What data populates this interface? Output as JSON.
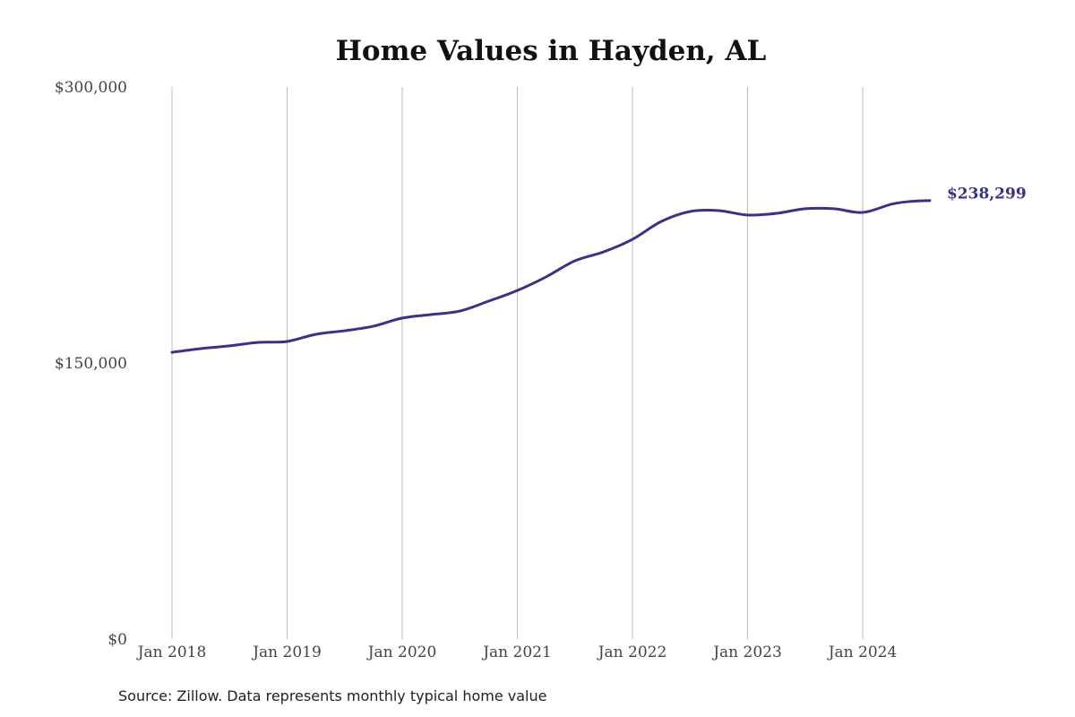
{
  "chart_data": {
    "type": "line",
    "title": "Home Values in Hayden, AL",
    "source": "Source: Zillow. Data represents monthly typical home value",
    "xlabel": "",
    "ylabel": "",
    "ylim": [
      0,
      300000
    ],
    "y_ticks": [
      0,
      150000,
      300000
    ],
    "y_tick_labels": [
      "$0",
      "$150,000",
      "$300,000"
    ],
    "x_ticks": [
      "2018-01",
      "2019-01",
      "2020-01",
      "2021-01",
      "2022-01",
      "2023-01",
      "2024-01"
    ],
    "x_tick_labels": [
      "Jan 2018",
      "Jan 2019",
      "Jan 2020",
      "Jan 2021",
      "Jan 2022",
      "Jan 2023",
      "Jan 2024"
    ],
    "grid": "vertical",
    "line_color": "#383483",
    "end_label": "$238,299",
    "series": [
      {
        "x": [
          "2018-01",
          "2018-04",
          "2018-07",
          "2018-10",
          "2019-01",
          "2019-04",
          "2019-07",
          "2019-10",
          "2020-01",
          "2020-04",
          "2020-07",
          "2020-10",
          "2021-01",
          "2021-04",
          "2021-07",
          "2021-10",
          "2022-01",
          "2022-04",
          "2022-07",
          "2022-10",
          "2023-01",
          "2023-04",
          "2023-07",
          "2023-10",
          "2024-01",
          "2024-04",
          "2024-06",
          "2024-08"
        ],
        "values": [
          155800,
          157800,
          159300,
          161200,
          161700,
          165600,
          167500,
          170000,
          174400,
          176300,
          178200,
          183600,
          189400,
          196800,
          205500,
          210400,
          217200,
          226900,
          232300,
          232800,
          230400,
          231300,
          233800,
          233800,
          231800,
          236300,
          237800,
          238299
        ]
      }
    ]
  }
}
